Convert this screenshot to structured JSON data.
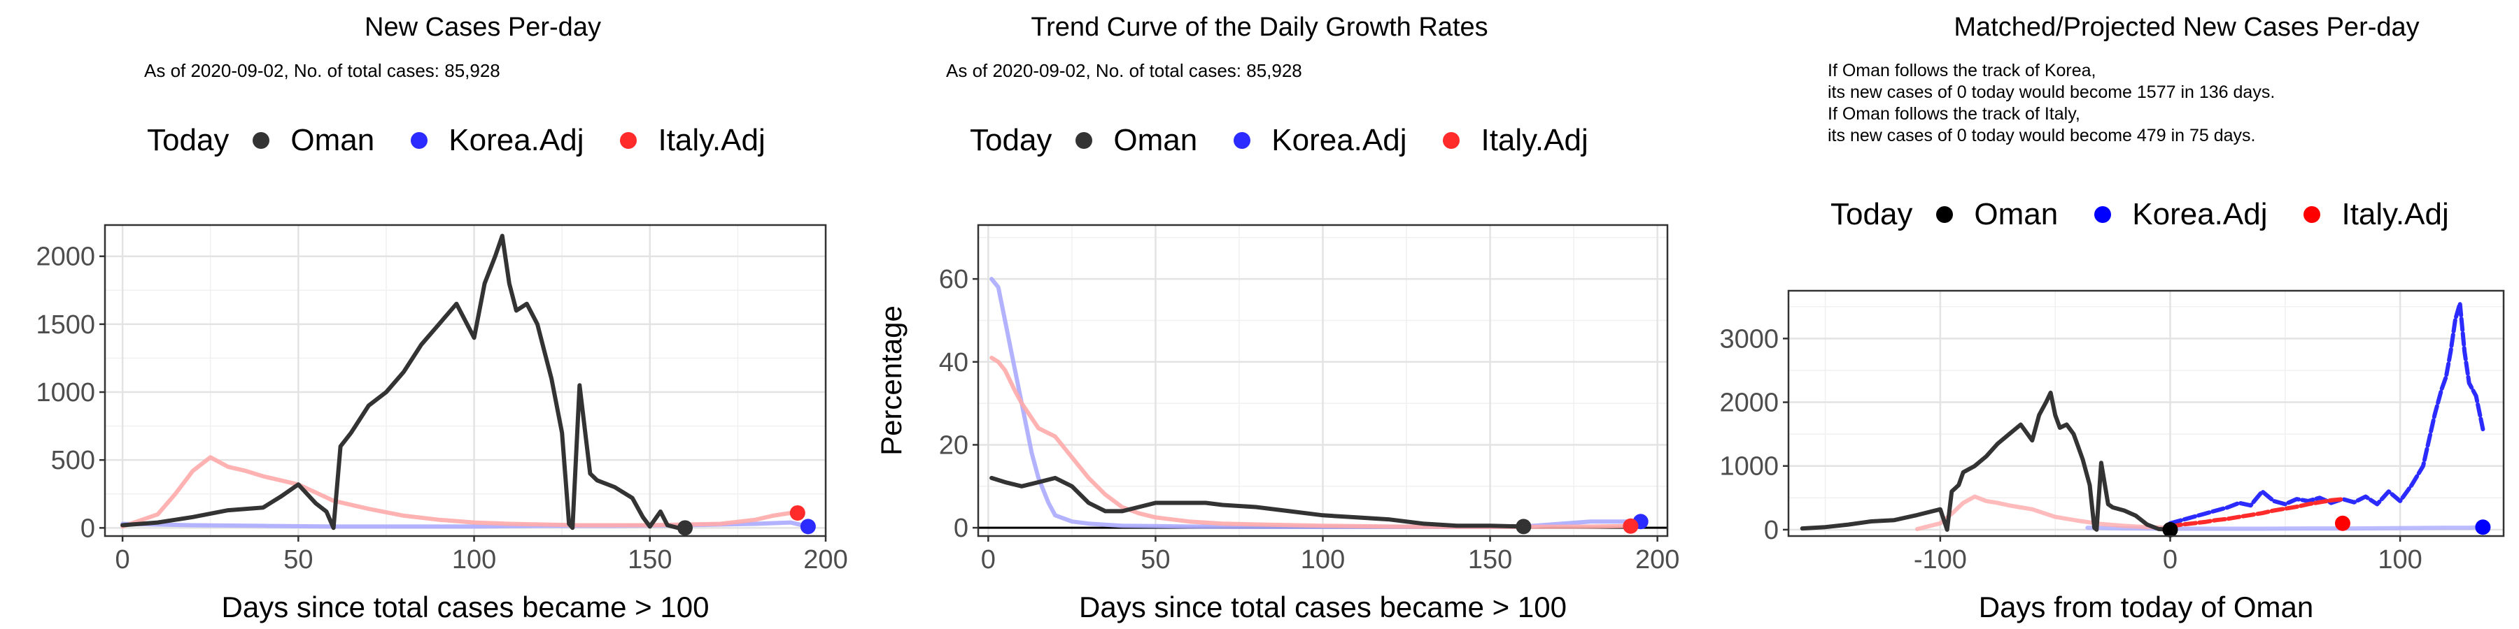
{
  "panels": [
    {
      "title": "New Cases Per-day",
      "subtitle": "As of 2020-09-02, No. of total cases: 85,928",
      "legend": {
        "title": "Today",
        "items": [
          "Oman",
          "Korea.Adj",
          "Italy.Adj"
        ]
      }
    },
    {
      "title": "Trend Curve of the Daily Growth Rates",
      "subtitle": "As of 2020-09-02, No. of total cases: 85,928",
      "legend": {
        "title": "Today",
        "items": [
          "Oman",
          "Korea.Adj",
          "Italy.Adj"
        ]
      }
    },
    {
      "title": "Matched/Projected New Cases Per-day",
      "notes": [
        "If Oman follows the track of Korea,",
        "its new cases of 0 today would become 1577 in 136 days.",
        "If Oman follows the track of Italy,",
        "its new cases of 0 today would become 479 in 75 days."
      ],
      "legend": {
        "title": "Today",
        "items": [
          "Oman",
          "Korea.Adj",
          "Italy.Adj"
        ]
      }
    }
  ],
  "colors": {
    "oman": "#333333",
    "korea": "#2b2bff",
    "italy": "#ff2b2b",
    "korea_faint": "#aaaaff",
    "italy_faint": "#ffaaaa"
  },
  "chart_data": [
    {
      "type": "line",
      "title": "New Cases Per-day",
      "xlabel": "Days since total cases became > 100",
      "ylabel": "",
      "xlim": [
        -5,
        200
      ],
      "ylim": [
        -60,
        2230
      ],
      "xticks": [
        0,
        50,
        100,
        150,
        200
      ],
      "yticks": [
        0,
        500,
        1000,
        1500,
        2000
      ],
      "grid": true,
      "series": [
        {
          "name": "Oman",
          "x": [
            0,
            10,
            20,
            30,
            40,
            45,
            50,
            55,
            58,
            60,
            62,
            65,
            70,
            75,
            80,
            85,
            90,
            95,
            100,
            103,
            106,
            108,
            110,
            112,
            115,
            118,
            120,
            122,
            125,
            127,
            128,
            130,
            133,
            135,
            140,
            145,
            148,
            150,
            153,
            155,
            158,
            160
          ],
          "y": [
            20,
            40,
            80,
            130,
            150,
            230,
            320,
            180,
            120,
            0,
            600,
            700,
            900,
            1000,
            1150,
            1350,
            1500,
            1650,
            1400,
            1800,
            2000,
            2150,
            1800,
            1600,
            1650,
            1500,
            1300,
            1100,
            700,
            30,
            0,
            1050,
            400,
            350,
            300,
            220,
            80,
            10,
            120,
            20,
            0,
            0
          ]
        },
        {
          "name": "Korea.Adj",
          "x": [
            0,
            20,
            40,
            60,
            80,
            100,
            120,
            140,
            160,
            180,
            190,
            195
          ],
          "y": [
            30,
            20,
            15,
            10,
            10,
            10,
            15,
            15,
            20,
            30,
            40,
            10
          ]
        },
        {
          "name": "Italy.Adj",
          "x": [
            0,
            10,
            15,
            20,
            25,
            30,
            35,
            40,
            45,
            50,
            55,
            60,
            70,
            80,
            90,
            100,
            110,
            120,
            130,
            140,
            150,
            160,
            170,
            180,
            185,
            190
          ],
          "y": [
            10,
            100,
            250,
            420,
            520,
            450,
            420,
            380,
            350,
            320,
            260,
            200,
            140,
            90,
            60,
            40,
            30,
            25,
            20,
            20,
            20,
            25,
            30,
            60,
            90,
            110
          ]
        }
      ],
      "today": [
        {
          "name": "Oman",
          "x": 160,
          "y": 0
        },
        {
          "name": "Korea.Adj",
          "x": 195,
          "y": 10
        },
        {
          "name": "Italy.Adj",
          "x": 192,
          "y": 110
        }
      ]
    },
    {
      "type": "line",
      "title": "Trend Curve of the Daily Growth Rates",
      "xlabel": "Days since total cases became > 100",
      "ylabel": "Percentage",
      "xlim": [
        -3,
        203
      ],
      "ylim": [
        -2,
        73
      ],
      "xticks": [
        0,
        50,
        100,
        150,
        200
      ],
      "yticks": [
        0,
        20,
        40,
        60
      ],
      "grid": true,
      "hline": 0,
      "series": [
        {
          "name": "Oman",
          "x": [
            1,
            5,
            10,
            15,
            20,
            25,
            30,
            35,
            40,
            45,
            50,
            55,
            60,
            65,
            70,
            80,
            90,
            100,
            110,
            120,
            130,
            140,
            150,
            160
          ],
          "y": [
            12,
            11,
            10,
            11,
            12,
            10,
            6,
            4,
            4,
            5,
            6,
            6,
            6,
            6,
            5.5,
            5,
            4,
            3,
            2.5,
            2,
            1,
            0.5,
            0.5,
            0.3
          ]
        },
        {
          "name": "Korea.Adj",
          "x": [
            1,
            3,
            5,
            8,
            10,
            13,
            15,
            18,
            20,
            25,
            30,
            40,
            60,
            80,
            100,
            120,
            140,
            160,
            180,
            190,
            195
          ],
          "y": [
            60,
            58,
            50,
            38,
            30,
            18,
            12,
            6,
            3,
            1.5,
            1,
            0.5,
            0.3,
            0.2,
            0.2,
            0.2,
            0.2,
            0.3,
            1.5,
            1.5,
            1.5
          ]
        },
        {
          "name": "Italy.Adj",
          "x": [
            1,
            3,
            5,
            8,
            10,
            15,
            20,
            25,
            30,
            35,
            40,
            45,
            50,
            60,
            70,
            80,
            100,
            120,
            140,
            160,
            180,
            190,
            192
          ],
          "y": [
            41,
            40,
            38,
            33,
            30,
            24,
            22,
            17,
            12,
            8,
            5,
            3.5,
            2.5,
            1.5,
            1,
            0.8,
            0.5,
            0.3,
            0.2,
            0.2,
            0.3,
            0.4,
            0.4
          ]
        }
      ],
      "today": [
        {
          "name": "Oman",
          "x": 160,
          "y": 0.3
        },
        {
          "name": "Korea.Adj",
          "x": 195,
          "y": 1.5
        },
        {
          "name": "Italy.Adj",
          "x": 192,
          "y": 0.4
        }
      ]
    },
    {
      "type": "line",
      "title": "Matched/Projected New Cases Per-day",
      "xlabel": "Days from today of Oman",
      "ylabel": "",
      "xlim": [
        -166,
        145
      ],
      "ylim": [
        -100,
        3750
      ],
      "xticks": [
        -100,
        0,
        100
      ],
      "yticks": [
        0,
        1000,
        2000,
        3000
      ],
      "grid": true,
      "series": [
        {
          "name": "Oman",
          "x": [
            -160,
            -150,
            -140,
            -130,
            -120,
            -110,
            -100,
            -97,
            -95,
            -92,
            -90,
            -85,
            -80,
            -75,
            -70,
            -65,
            -60,
            -57,
            -54,
            -52,
            -50,
            -48,
            -45,
            -42,
            -40,
            -38,
            -35,
            -33,
            -32,
            -30,
            -27,
            -25,
            -20,
            -15,
            -10,
            -5,
            0
          ],
          "y": [
            20,
            40,
            80,
            130,
            150,
            230,
            320,
            0,
            600,
            700,
            900,
            1000,
            1150,
            1350,
            1500,
            1650,
            1400,
            1800,
            2000,
            2150,
            1800,
            1600,
            1650,
            1500,
            1300,
            1100,
            700,
            30,
            0,
            1050,
            400,
            350,
            300,
            220,
            80,
            10,
            0
          ]
        },
        {
          "name": "Korea.Adj",
          "x": [
            0,
            5,
            10,
            15,
            20,
            25,
            30,
            35,
            40,
            45,
            50,
            55,
            60,
            65,
            70,
            75,
            80,
            85,
            90,
            95,
            100,
            105,
            110,
            115,
            118,
            120,
            122,
            124,
            126,
            128,
            130,
            133,
            136
          ],
          "y": [
            100,
            150,
            200,
            250,
            300,
            350,
            420,
            380,
            600,
            450,
            400,
            480,
            450,
            500,
            420,
            480,
            430,
            520,
            400,
            600,
            450,
            700,
            1000,
            1800,
            2200,
            2400,
            2800,
            3300,
            3550,
            2800,
            2300,
            2100,
            1577
          ]
        },
        {
          "name": "Italy.Adj",
          "x": [
            0,
            5,
            10,
            15,
            20,
            25,
            30,
            35,
            40,
            45,
            50,
            55,
            60,
            65,
            70,
            75
          ],
          "y": [
            50,
            80,
            100,
            120,
            150,
            170,
            200,
            230,
            260,
            300,
            330,
            360,
            400,
            430,
            460,
            479
          ]
        },
        {
          "name": "Korea.Adj (matched)",
          "x": [
            -36,
            -20,
            0,
            20,
            40,
            60,
            80,
            100,
            120,
            130,
            136
          ],
          "y": [
            30,
            20,
            15,
            15,
            15,
            20,
            20,
            25,
            30,
            30,
            40
          ]
        },
        {
          "name": "Italy.Adj (matched)",
          "x": [
            -110,
            -100,
            -95,
            -90,
            -85,
            -80,
            -75,
            -70,
            -65,
            -60,
            -55,
            -50,
            -40,
            -30,
            -20,
            -10,
            0
          ],
          "y": [
            10,
            100,
            250,
            420,
            520,
            450,
            420,
            380,
            350,
            320,
            260,
            200,
            140,
            90,
            60,
            40,
            30
          ]
        }
      ],
      "today": [
        {
          "name": "Oman",
          "x": 0,
          "y": 0
        },
        {
          "name": "Korea.Adj",
          "x": 136,
          "y": 40
        },
        {
          "name": "Italy.Adj",
          "x": 75,
          "y": 100
        }
      ]
    }
  ]
}
